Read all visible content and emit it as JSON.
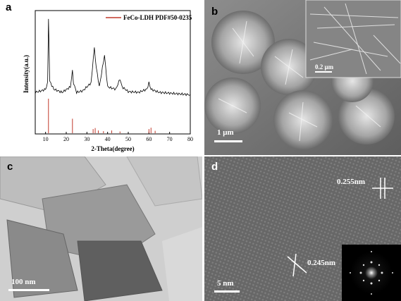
{
  "panels": {
    "a": {
      "label": "a"
    },
    "b": {
      "label": "b",
      "scale_bar": "1 μm",
      "inset_scale_bar": "0.2 μm"
    },
    "c": {
      "label": "c",
      "scale_bar": "100 nm"
    },
    "d": {
      "label": "d",
      "scale_bar": "5 nm",
      "lattice_1": "0.255nm",
      "lattice_2": "0.245nm"
    }
  },
  "chart_data": {
    "type": "line",
    "xlabel": "2-Theta(degree)",
    "ylabel": "Intensity(a.u.)",
    "xlim": [
      5,
      80
    ],
    "x_ticks": [
      "10",
      "20",
      "30",
      "40",
      "50",
      "60",
      "70",
      "80"
    ],
    "grid": false,
    "legend": {
      "placement": "top-right",
      "entries": [
        "FeCo-LDH PDF#50-0235"
      ]
    },
    "colors": {
      "xrd_trace": "#000000",
      "reference": "#c0392b"
    },
    "series": [
      {
        "name": "",
        "x": [
          5,
          8,
          10,
          11,
          11.4,
          12,
          14,
          18,
          22,
          23,
          23.5,
          25,
          28,
          32,
          33.6,
          34.5,
          36,
          38.5,
          40,
          44,
          46,
          47,
          50,
          55,
          59,
          60,
          61,
          65,
          70,
          75,
          80
        ],
        "y": [
          0.08,
          0.1,
          0.12,
          0.2,
          1.0,
          0.22,
          0.12,
          0.08,
          0.15,
          0.35,
          0.2,
          0.08,
          0.1,
          0.2,
          0.65,
          0.4,
          0.15,
          0.55,
          0.15,
          0.12,
          0.25,
          0.15,
          0.09,
          0.08,
          0.12,
          0.2,
          0.12,
          0.08,
          0.07,
          0.06,
          0.05
        ]
      },
      {
        "name": "FeCo-LDH PDF#50-0235",
        "x": [
          11.4,
          23,
          33,
          34,
          35.5,
          38,
          42,
          46,
          60,
          61,
          63
        ],
        "y": [
          1.0,
          0.42,
          0.12,
          0.15,
          0.08,
          0.06,
          0.08,
          0.05,
          0.12,
          0.16,
          0.07
        ]
      }
    ]
  }
}
